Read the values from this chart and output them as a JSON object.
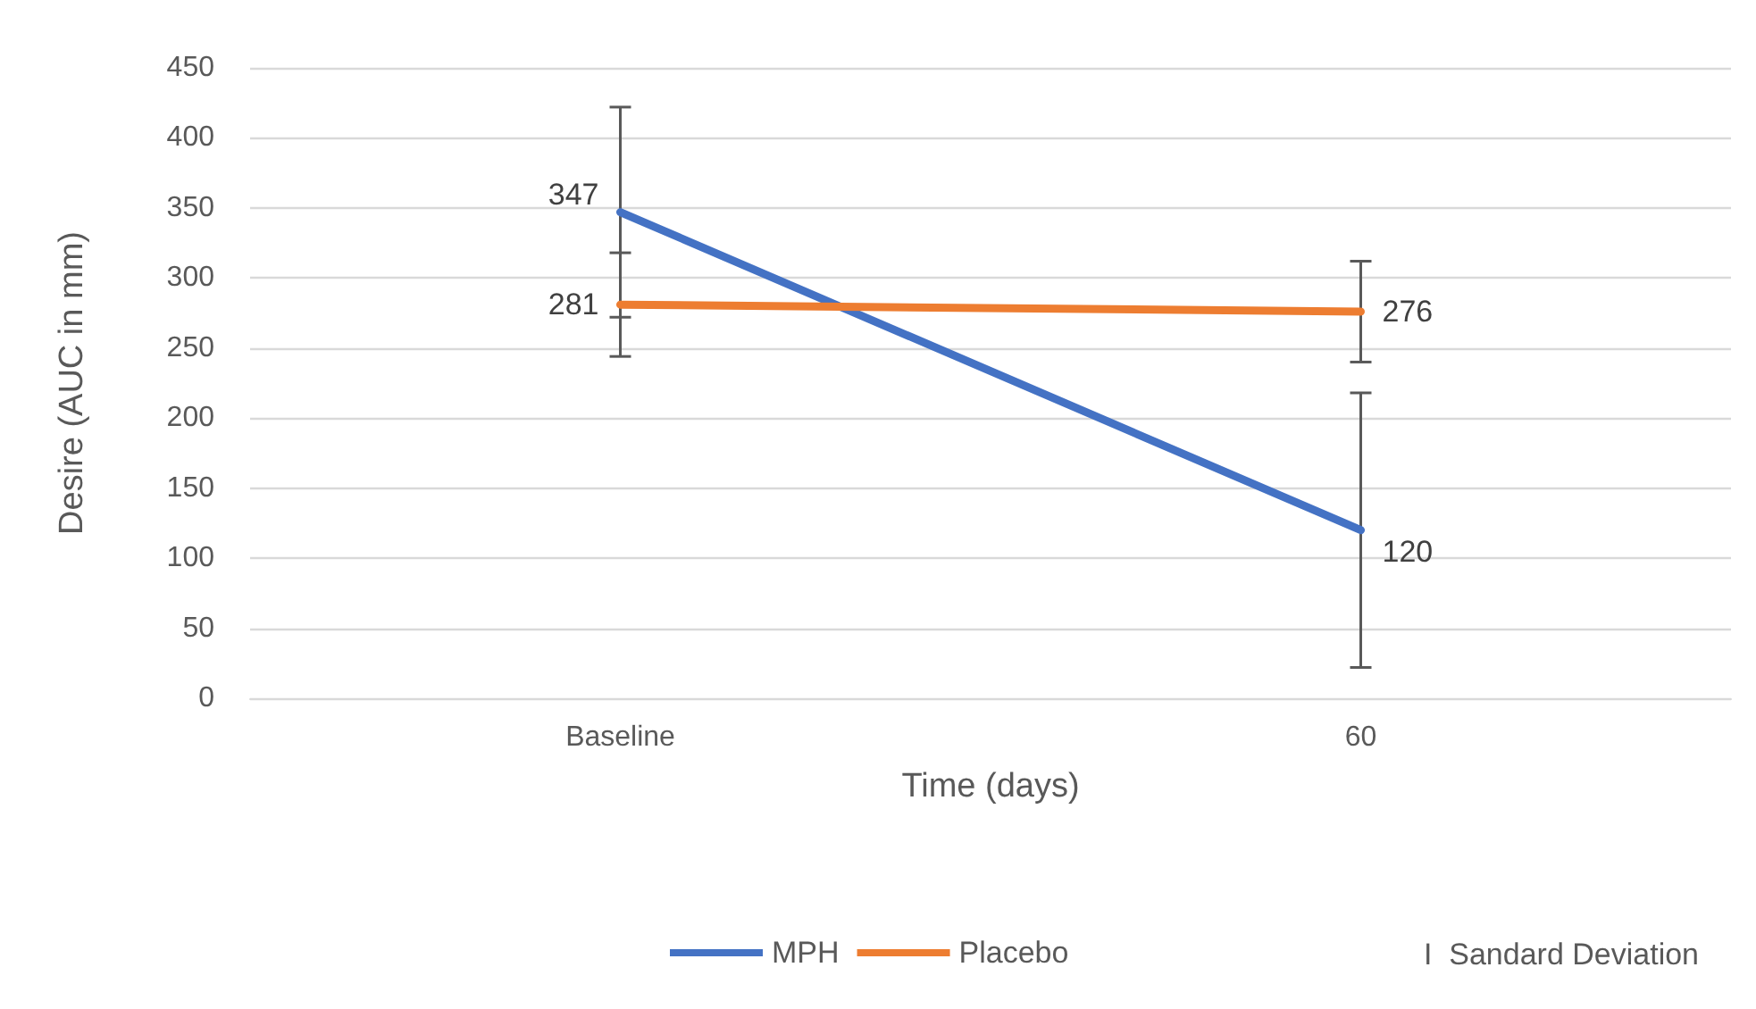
{
  "chart_data": {
    "type": "line",
    "xlabel": "Time (days)",
    "ylabel": "Desire (AUC in mm)",
    "categories": [
      "Baseline",
      "60"
    ],
    "series": [
      {
        "name": "MPH",
        "color": "#4472c4",
        "values": [
          347,
          120
        ],
        "errors": [
          75,
          98
        ]
      },
      {
        "name": "Placebo",
        "color": "#ed7d31",
        "values": [
          281,
          276
        ],
        "errors": [
          37,
          36
        ]
      }
    ],
    "ylim": [
      0,
      450
    ],
    "yticks": [
      0,
      50,
      100,
      150,
      200,
      250,
      300,
      350,
      400,
      450
    ],
    "grid": "y",
    "legend": "bottom",
    "marker": "none",
    "line_style": "solid",
    "data_labels": true,
    "annotations": [
      "I  Sandard Deviation"
    ]
  }
}
